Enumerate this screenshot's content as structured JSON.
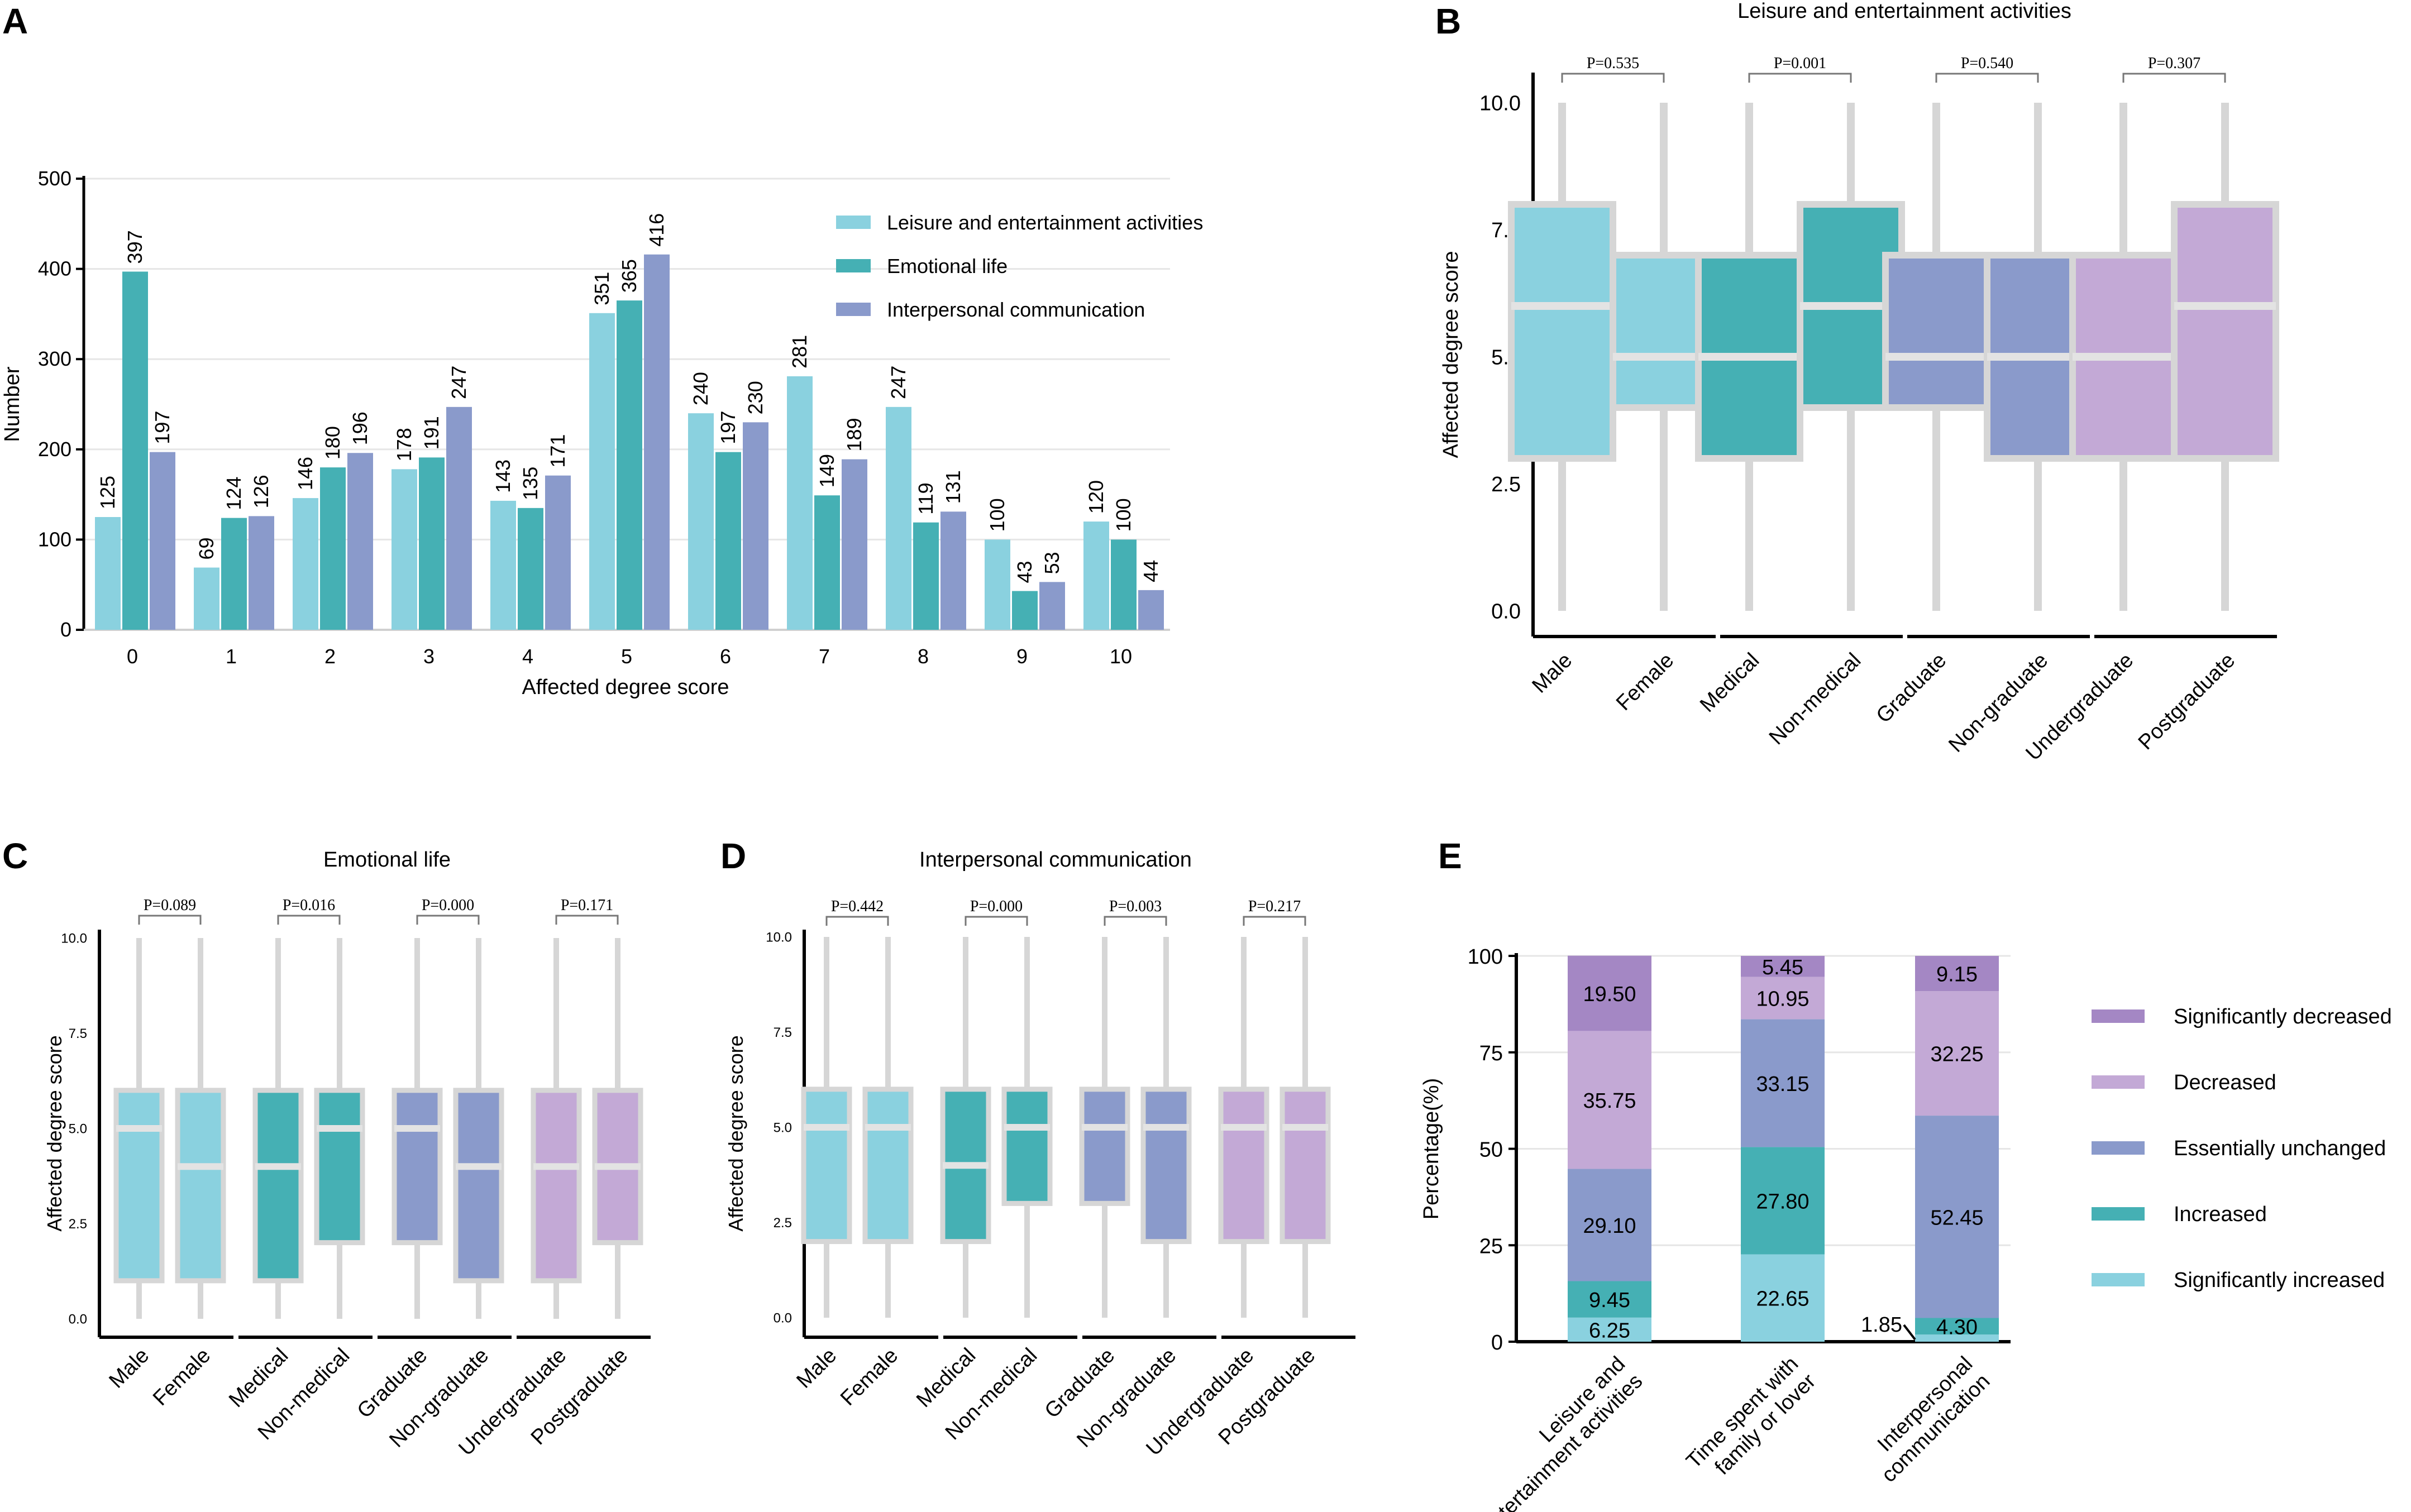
{
  "colors": {
    "cyan": "#8ad1df",
    "teal": "#45b0b4",
    "blue": "#8a9acb",
    "lightpurple": "#c3a9d6",
    "purple": "#a487c4",
    "whisker": "#d6d6d6",
    "grid": "#e6e6e6"
  },
  "chart_data": [
    {
      "panel": "A",
      "type": "bar",
      "title": "",
      "xlabel": "Affected degree score",
      "ylabel": "Number",
      "ylim": [
        0,
        500
      ],
      "yticks": [
        0,
        100,
        200,
        300,
        400,
        500
      ],
      "categories": [
        "0",
        "1",
        "2",
        "3",
        "4",
        "5",
        "6",
        "7",
        "8",
        "9",
        "10"
      ],
      "legend_position": "top-right",
      "series": [
        {
          "name": "Leisure and entertainment activities",
          "color": "cyan",
          "values": [
            125,
            69,
            146,
            178,
            143,
            351,
            240,
            281,
            247,
            100,
            120
          ]
        },
        {
          "name": "Emotional life",
          "color": "teal",
          "values": [
            397,
            124,
            180,
            191,
            135,
            365,
            197,
            149,
            119,
            43,
            100
          ]
        },
        {
          "name": "Interpersonal communication",
          "color": "blue",
          "values": [
            197,
            126,
            196,
            247,
            171,
            416,
            230,
            189,
            131,
            53,
            44
          ]
        }
      ]
    },
    {
      "panel": "B",
      "type": "box",
      "title": "Leisure and entertainment activities",
      "ylabel": "Affected degree score",
      "ylim": [
        0,
        10
      ],
      "yticks": [
        "0.0",
        "2.5",
        "5.0",
        "7.5",
        "10.0"
      ],
      "groups": [
        {
          "p": "P=0.535",
          "boxes": [
            {
              "label": "Male",
              "color": "cyan",
              "min": 0,
              "q1": 3,
              "median": 6,
              "q3": 8,
              "max": 10
            },
            {
              "label": "Female",
              "color": "cyan",
              "min": 0,
              "q1": 4,
              "median": 5,
              "q3": 7,
              "max": 10
            }
          ]
        },
        {
          "p": "P=0.001",
          "boxes": [
            {
              "label": "Medical",
              "color": "teal",
              "min": 0,
              "q1": 3,
              "median": 5,
              "q3": 7,
              "max": 10
            },
            {
              "label": "Non-medical",
              "color": "teal",
              "min": 0,
              "q1": 4,
              "median": 6,
              "q3": 8,
              "max": 10
            }
          ]
        },
        {
          "p": "P=0.540",
          "boxes": [
            {
              "label": "Graduate",
              "color": "blue",
              "min": 0,
              "q1": 4,
              "median": 5,
              "q3": 7,
              "max": 10
            },
            {
              "label": "Non-graduate",
              "color": "blue",
              "min": 0,
              "q1": 3,
              "median": 5,
              "q3": 7,
              "max": 10
            }
          ]
        },
        {
          "p": "P=0.307",
          "boxes": [
            {
              "label": "Undergraduate",
              "color": "lightpurple",
              "min": 0,
              "q1": 3,
              "median": 5,
              "q3": 7,
              "max": 10
            },
            {
              "label": "Postgraduate",
              "color": "lightpurple",
              "min": 0,
              "q1": 3,
              "median": 6,
              "q3": 8,
              "max": 10
            }
          ]
        }
      ]
    },
    {
      "panel": "C",
      "type": "box",
      "title": "Emotional life",
      "ylabel": "Affected degree score",
      "ylim": [
        0,
        10
      ],
      "yticks": [
        "0.0",
        "2.5",
        "5.0",
        "7.5",
        "10.0"
      ],
      "groups": [
        {
          "p": "P=0.089",
          "boxes": [
            {
              "label": "Male",
              "color": "cyan",
              "min": 0,
              "q1": 1,
              "median": 5,
              "q3": 6,
              "max": 10
            },
            {
              "label": "Female",
              "color": "cyan",
              "min": 0,
              "q1": 1,
              "median": 4,
              "q3": 6,
              "max": 10
            }
          ]
        },
        {
          "p": "P=0.016",
          "boxes": [
            {
              "label": "Medical",
              "color": "teal",
              "min": 0,
              "q1": 1,
              "median": 4,
              "q3": 6,
              "max": 10
            },
            {
              "label": "Non-medical",
              "color": "teal",
              "min": 0,
              "q1": 2,
              "median": 5,
              "q3": 6,
              "max": 10
            }
          ]
        },
        {
          "p": "P=0.000",
          "boxes": [
            {
              "label": "Graduate",
              "color": "blue",
              "min": 0,
              "q1": 2,
              "median": 5,
              "q3": 6,
              "max": 10
            },
            {
              "label": "Non-graduate",
              "color": "blue",
              "min": 0,
              "q1": 1,
              "median": 4,
              "q3": 6,
              "max": 10
            }
          ]
        },
        {
          "p": "P=0.171",
          "boxes": [
            {
              "label": "Undergraduate",
              "color": "lightpurple",
              "min": 0,
              "q1": 1,
              "median": 4,
              "q3": 6,
              "max": 10
            },
            {
              "label": "Postgraduate",
              "color": "lightpurple",
              "min": 0,
              "q1": 2,
              "median": 4,
              "q3": 6,
              "max": 10
            }
          ]
        }
      ]
    },
    {
      "panel": "D",
      "type": "box",
      "title": "Interpersonal communication",
      "ylabel": "Affected degree score",
      "ylim": [
        0,
        10
      ],
      "yticks": [
        "0.0",
        "2.5",
        "5.0",
        "7.5",
        "10.0"
      ],
      "groups": [
        {
          "p": "P=0.442",
          "boxes": [
            {
              "label": "Male",
              "color": "cyan",
              "min": 0,
              "q1": 2,
              "median": 5,
              "q3": 6,
              "max": 10
            },
            {
              "label": "Female",
              "color": "cyan",
              "min": 0,
              "q1": 2,
              "median": 5,
              "q3": 6,
              "max": 10
            }
          ]
        },
        {
          "p": "P=0.000",
          "boxes": [
            {
              "label": "Medical",
              "color": "teal",
              "min": 0,
              "q1": 2,
              "median": 4,
              "q3": 6,
              "max": 10
            },
            {
              "label": "Non-medical",
              "color": "teal",
              "min": 0,
              "q1": 3,
              "median": 5,
              "q3": 6,
              "max": 10
            }
          ]
        },
        {
          "p": "P=0.003",
          "boxes": [
            {
              "label": "Graduate",
              "color": "blue",
              "min": 0,
              "q1": 3,
              "median": 5,
              "q3": 6,
              "max": 10
            },
            {
              "label": "Non-graduate",
              "color": "blue",
              "min": 0,
              "q1": 2,
              "median": 5,
              "q3": 6,
              "max": 10
            }
          ]
        },
        {
          "p": "P=0.217",
          "boxes": [
            {
              "label": "Undergraduate",
              "color": "lightpurple",
              "min": 0,
              "q1": 2,
              "median": 5,
              "q3": 6,
              "max": 10
            },
            {
              "label": "Postgraduate",
              "color": "lightpurple",
              "min": 0,
              "q1": 2,
              "median": 5,
              "q3": 6,
              "max": 10
            }
          ]
        }
      ]
    },
    {
      "panel": "E",
      "type": "stacked-bar",
      "title": "",
      "ylabel": "Percentage(%)",
      "ylim": [
        0,
        100
      ],
      "yticks": [
        0,
        25,
        50,
        75,
        100
      ],
      "categories": [
        "Leisure and entertainment activities",
        "Time spent with family or lover",
        "Interpersonal communication"
      ],
      "category_lines": [
        [
          "Leisure and",
          "entertainment activities"
        ],
        [
          "Time spent with",
          "family or lover"
        ],
        [
          "Interpersonal",
          "communication"
        ]
      ],
      "legend_position": "right",
      "series": [
        {
          "name": "Significantly increased",
          "color": "cyan",
          "values": [
            6.25,
            22.65,
            1.85
          ],
          "labels": [
            "6.25",
            "22.65",
            "1.85"
          ]
        },
        {
          "name": "Increased",
          "color": "teal",
          "values": [
            9.45,
            27.8,
            4.3
          ],
          "labels": [
            "9.45",
            "27.80",
            "4.30"
          ]
        },
        {
          "name": "Essentially unchanged",
          "color": "blue",
          "values": [
            29.1,
            33.15,
            52.45
          ],
          "labels": [
            "29.10",
            "33.15",
            "52.45"
          ]
        },
        {
          "name": "Decreased",
          "color": "lightpurple",
          "values": [
            35.75,
            10.95,
            32.25
          ],
          "labels": [
            "35.75",
            "10.95",
            "32.25"
          ]
        },
        {
          "name": "Significantly decreased",
          "color": "purple",
          "values": [
            19.5,
            5.45,
            9.15
          ],
          "labels": [
            "19.50",
            "5.45",
            "9.15"
          ]
        }
      ]
    }
  ]
}
